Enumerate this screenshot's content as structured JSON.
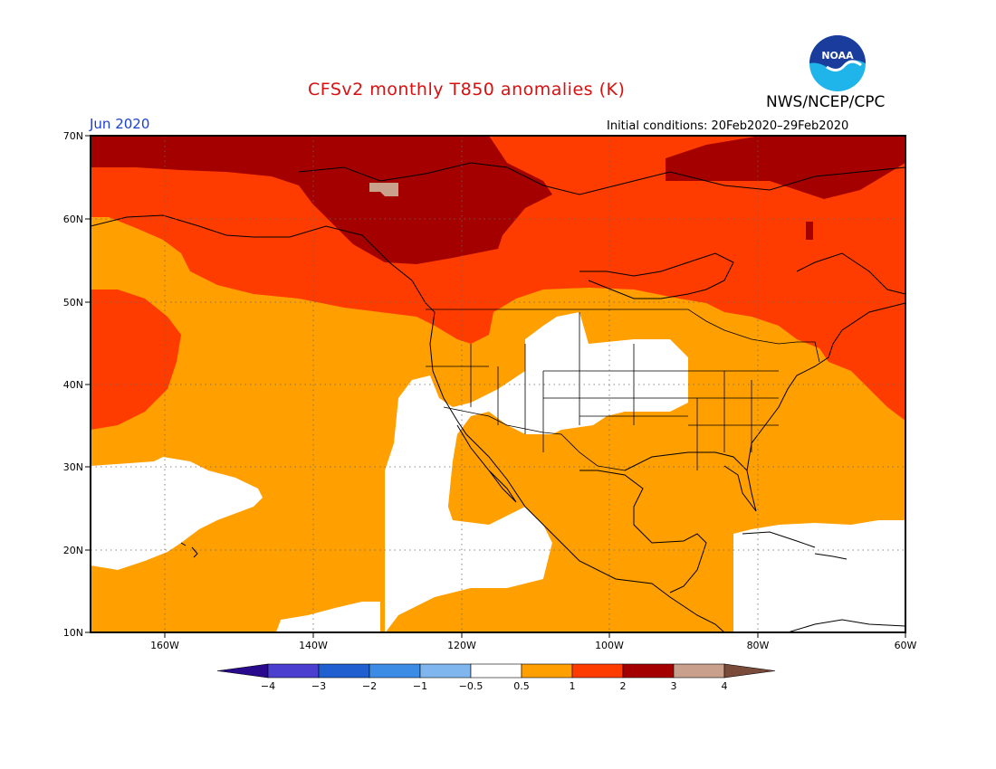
{
  "title": "CFSv2 monthly T850 anomalies (K)",
  "agency": "NWS/NCEP/CPC",
  "month": "Jun 2020",
  "initial_conditions": "Initial conditions: 20Feb2020–29Feb2020",
  "logo_text": "NOAA",
  "lat_labels": [
    "70N",
    "60N",
    "50N",
    "40N",
    "30N",
    "20N",
    "10N"
  ],
  "lon_labels": [
    "160W",
    "140W",
    "120W",
    "100W",
    "80W",
    "60W"
  ],
  "colorbar": {
    "labels": [
      "−4",
      "−3",
      "−2",
      "−1",
      "−0.5",
      "0.5",
      "1",
      "2",
      "3",
      "4"
    ],
    "colors": [
      "#2a0a8c",
      "#4b3fd0",
      "#1f5fd0",
      "#3c8ce6",
      "#7fb6ee",
      "#ffffff",
      "#ff9f00",
      "#ff3c00",
      "#a50000",
      "#c8a08c",
      "#7a4a3a"
    ]
  },
  "anomaly_colors": {
    "white": "#ffffff",
    "orange": "#ff9f00",
    "red": "#ff3c00",
    "darkred": "#a50000",
    "tan": "#c8a08c"
  }
}
